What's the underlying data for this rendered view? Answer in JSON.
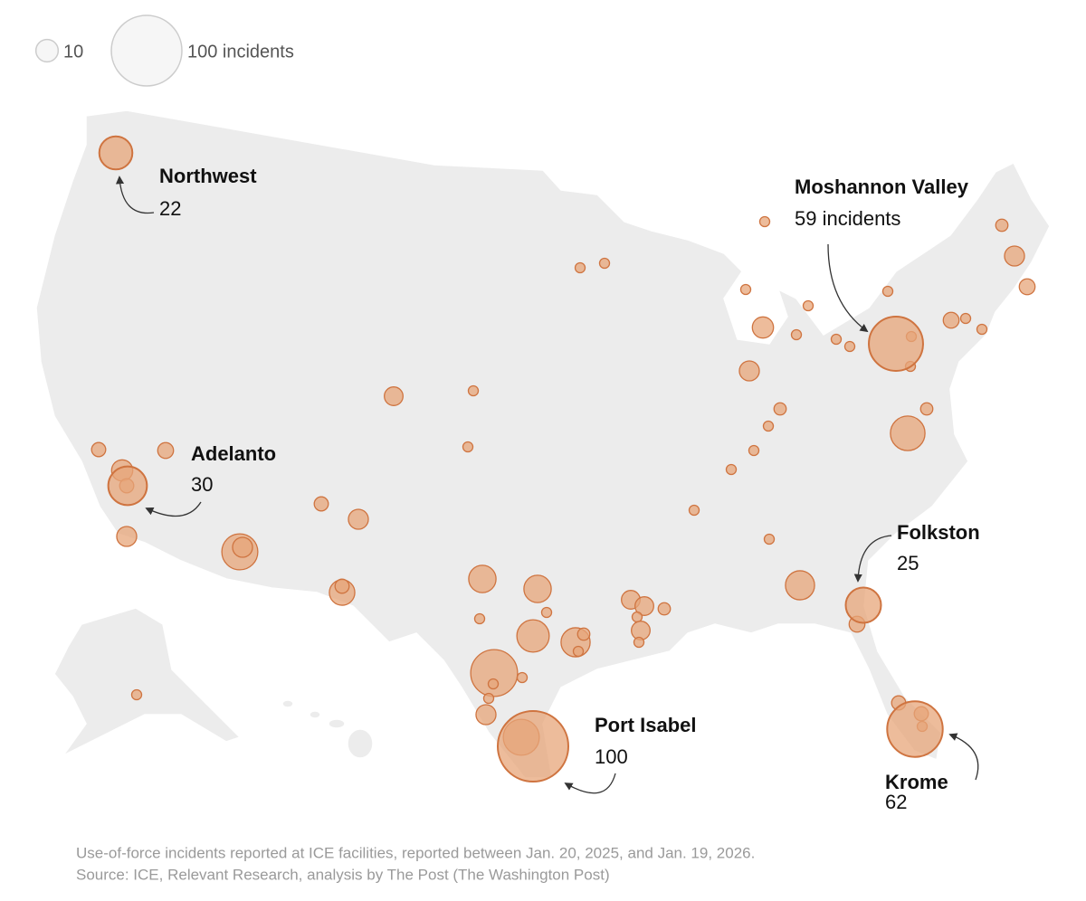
{
  "legend_sizes": [
    10,
    {
      "value": 100,
      "label": "100 incidents"
    }
  ],
  "facilities": [
    {
      "name": "Northwest",
      "incidents": 22
    },
    {
      "name": "Adelanto",
      "incidents": 30
    },
    {
      "name": "Moshannon Valley",
      "incidents": 59,
      "incidents_label": "59 incidents"
    },
    {
      "name": "Folkston",
      "incidents": 25
    },
    {
      "name": "Port Isabel",
      "incidents": 100
    },
    {
      "name": "Krome",
      "incidents": 62
    }
  ],
  "other_incidents": [
    3,
    8,
    5,
    5,
    2,
    2,
    2,
    3,
    24,
    2,
    2,
    2,
    2,
    2,
    9,
    2,
    2,
    8,
    3,
    2,
    2,
    2,
    2,
    2,
    17,
    5,
    4,
    2,
    2,
    2,
    2,
    7,
    5,
    4,
    9,
    8,
    4,
    8,
    26,
    8,
    13,
    4,
    15,
    15,
    2,
    2,
    21,
    17,
    3,
    2,
    44,
    2,
    2,
    2,
    8,
    7,
    7,
    2,
    3,
    7,
    2,
    2,
    4,
    2,
    26,
    2,
    4
  ],
  "caption": [
    "Use-of-force incidents reported at ICE facilities, reported between Jan. 20, 2025, and Jan. 19, 2026.",
    "Source: ICE, Relevant Research, analysis by The Post (The Washington Post)"
  ]
}
